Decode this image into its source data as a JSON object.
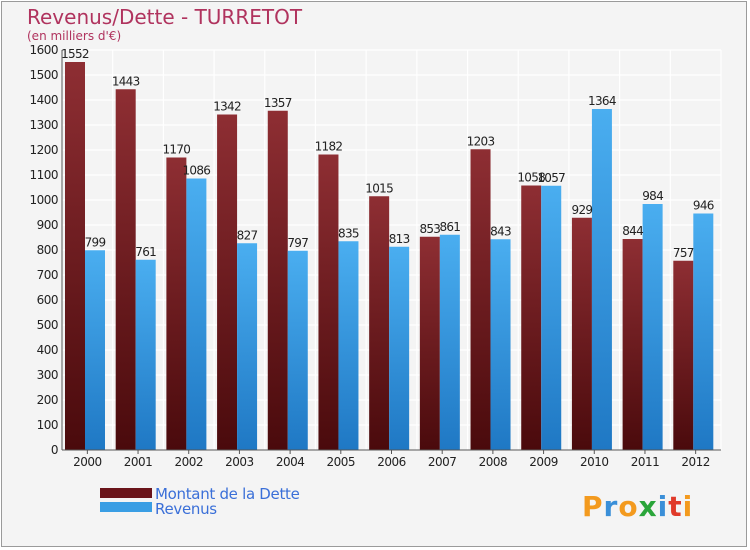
{
  "chart_data": {
    "type": "bar",
    "title": "Revenus/Dette - TURRETOT",
    "subtitle": "(en milliers d'€)",
    "categories": [
      "2000",
      "2001",
      "2002",
      "2003",
      "2004",
      "2005",
      "2006",
      "2007",
      "2008",
      "2009",
      "2010",
      "2011",
      "2012"
    ],
    "series": [
      {
        "name": "Montant de la Dette",
        "color": "#7a1f24",
        "values": [
          1552,
          1443,
          1170,
          1342,
          1357,
          1182,
          1015,
          853,
          1203,
          1058,
          929,
          844,
          757
        ]
      },
      {
        "name": "Revenus",
        "color": "#3a9ee4",
        "values": [
          799,
          761,
          1086,
          827,
          797,
          835,
          813,
          861,
          843,
          1057,
          1364,
          984,
          946
        ]
      }
    ],
    "ylim": [
      0,
      1600
    ],
    "yticks": [
      0,
      100,
      200,
      300,
      400,
      500,
      600,
      700,
      800,
      900,
      1000,
      1100,
      1200,
      1300,
      1400,
      1500,
      1600
    ],
    "grid": true,
    "legend_position": "bottom-left"
  },
  "logo": {
    "text": "Proxiti"
  }
}
